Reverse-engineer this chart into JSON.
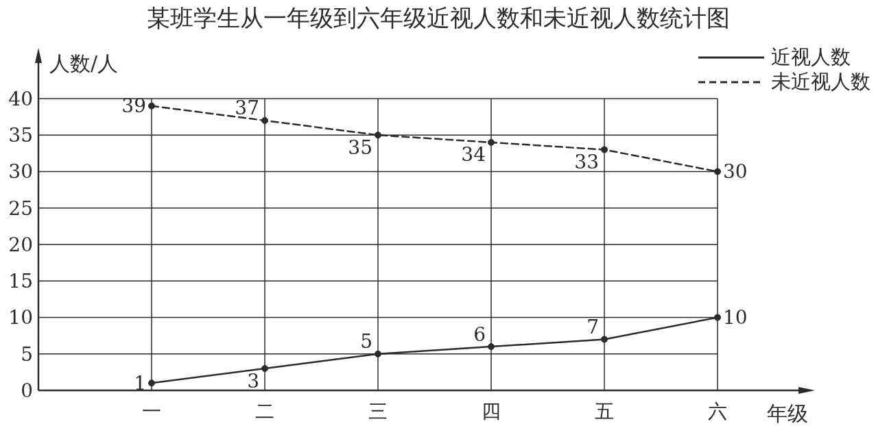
{
  "chart_data": {
    "type": "line",
    "title": "某班学生从一年级到六年级近视人数和未近视人数统计图",
    "xlabel": "年级",
    "ylabel": "人数/人",
    "categories": [
      "一",
      "二",
      "三",
      "四",
      "五",
      "六"
    ],
    "series": [
      {
        "name": "近视人数",
        "color": "#2b2b2b",
        "line_style": "solid",
        "values": [
          1,
          3,
          5,
          6,
          7,
          10
        ]
      },
      {
        "name": "未近视人数",
        "color": "#2b2b2b",
        "line_style": "dashed",
        "values": [
          39,
          37,
          35,
          34,
          33,
          30
        ]
      }
    ],
    "ylim": [
      0,
      40
    ],
    "yticks": [
      0,
      5,
      10,
      15,
      20,
      25,
      30,
      35,
      40
    ],
    "grid": true,
    "legend": "top right",
    "marker": "circle",
    "data_labels": true
  }
}
